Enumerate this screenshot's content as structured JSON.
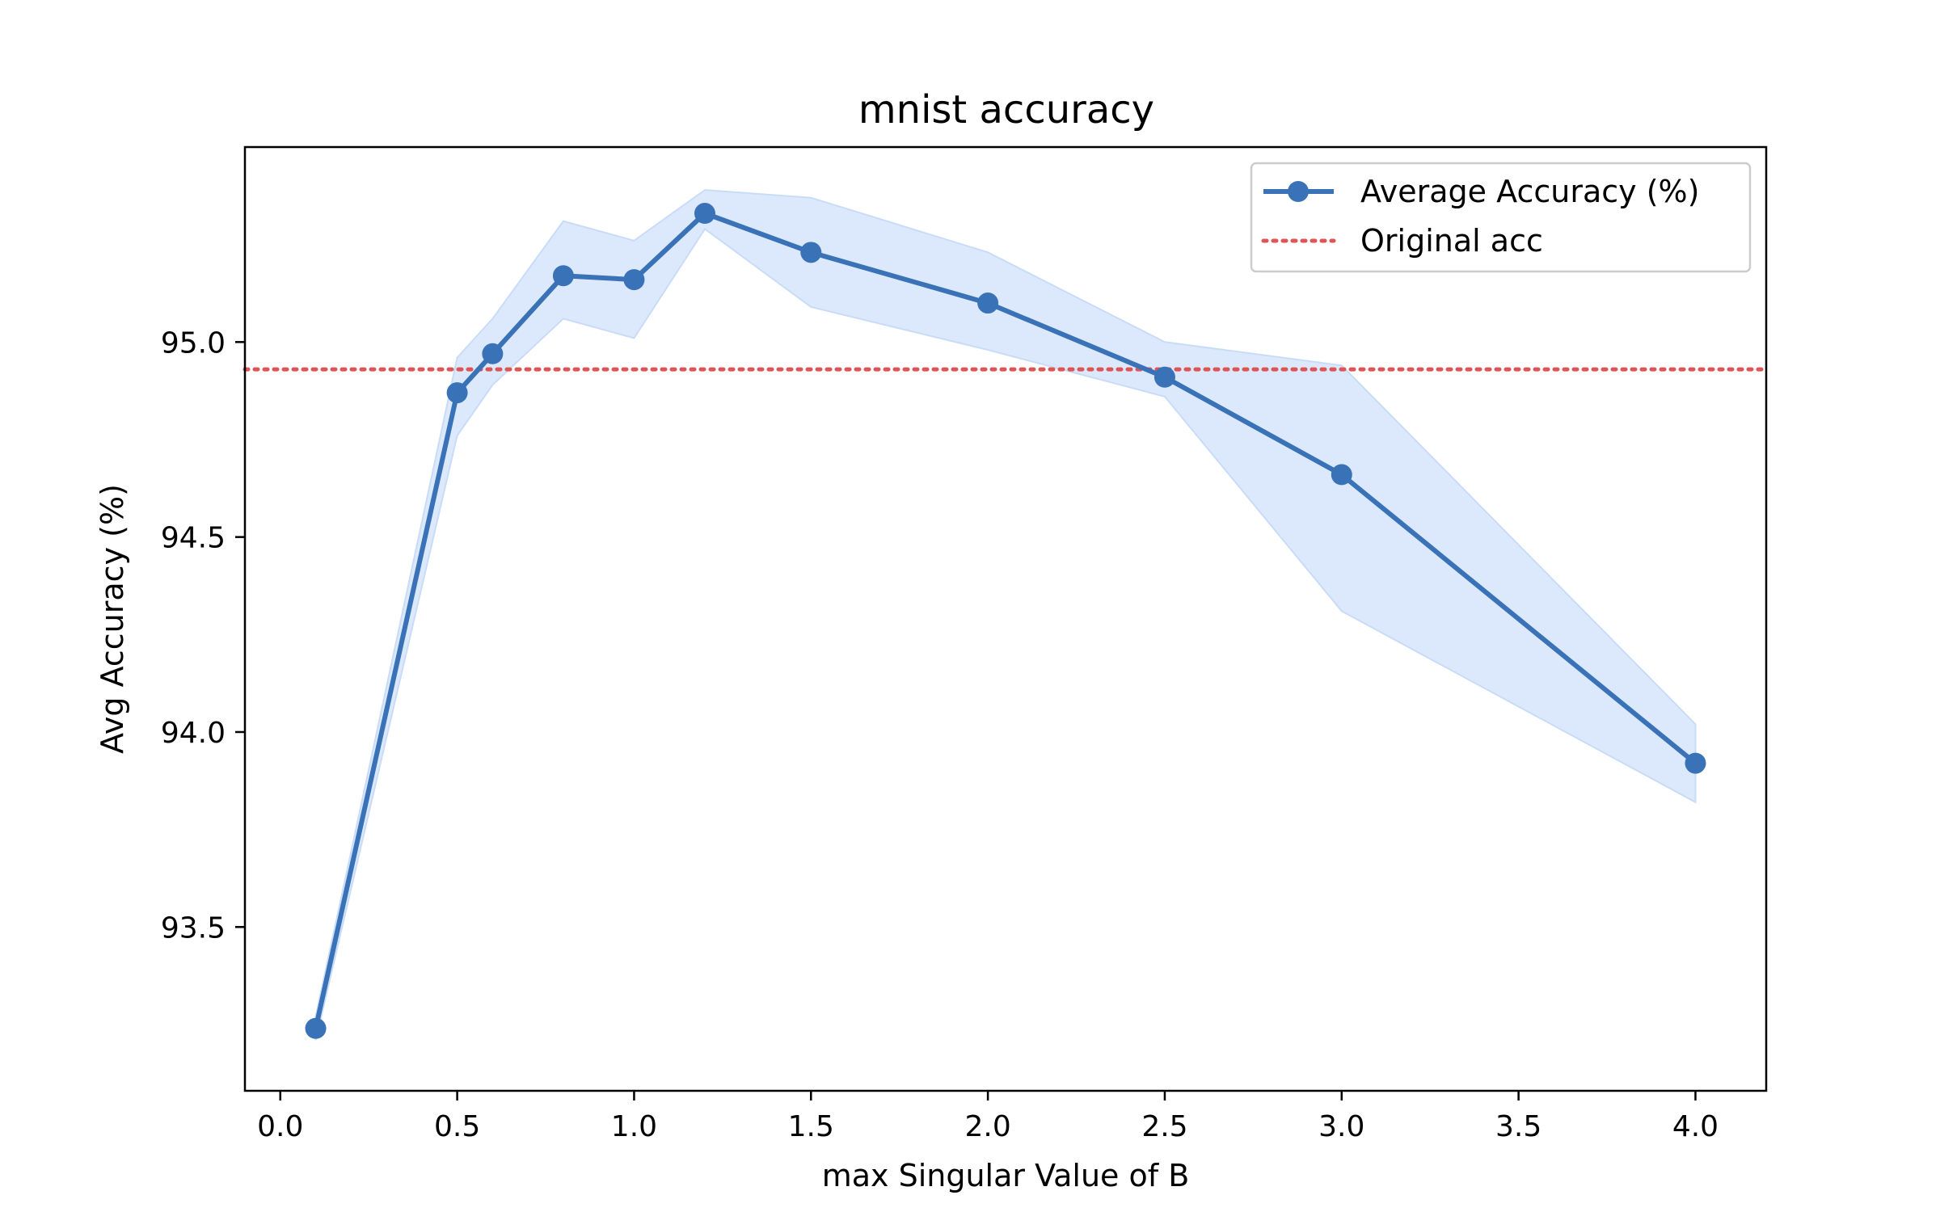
{
  "chart_data": {
    "type": "line",
    "title": "mnist accuracy",
    "xlabel": "max Singular Value of B",
    "ylabel": "Avg Accuracy (%)",
    "xlim": [
      -0.1,
      4.2
    ],
    "ylim": [
      93.08,
      95.5
    ],
    "xticks": [
      "0.0",
      "0.5",
      "1.0",
      "1.5",
      "2.0",
      "2.5",
      "3.0",
      "3.5",
      "4.0"
    ],
    "yticks": [
      "93.5",
      "94.0",
      "94.5",
      "95.0"
    ],
    "grid": false,
    "legend": {
      "placement": "top-right",
      "entries": [
        "Average Accuracy (%)",
        "Original acc"
      ]
    },
    "series": [
      {
        "name": "Average Accuracy (%)",
        "style": "line-markers",
        "color": "#3a72b8",
        "x": [
          0.1,
          0.5,
          0.6,
          0.8,
          1.0,
          1.2,
          1.5,
          2.0,
          2.5,
          3.0,
          4.0
        ],
        "y": [
          93.24,
          94.87,
          94.97,
          95.17,
          95.16,
          95.33,
          95.23,
          95.1,
          94.91,
          94.66,
          93.92
        ],
        "band_upper": [
          93.27,
          94.96,
          95.06,
          95.31,
          95.26,
          95.39,
          95.37,
          95.23,
          95.0,
          94.94,
          94.02
        ],
        "band_lower": [
          93.21,
          94.76,
          94.89,
          95.06,
          95.01,
          95.29,
          95.09,
          94.98,
          94.86,
          94.31,
          93.82
        ],
        "band_color": "#dce8fb"
      }
    ],
    "reference_line": {
      "name": "Original acc",
      "y": 94.93,
      "color": "#dd5555",
      "style": "dotted"
    }
  }
}
